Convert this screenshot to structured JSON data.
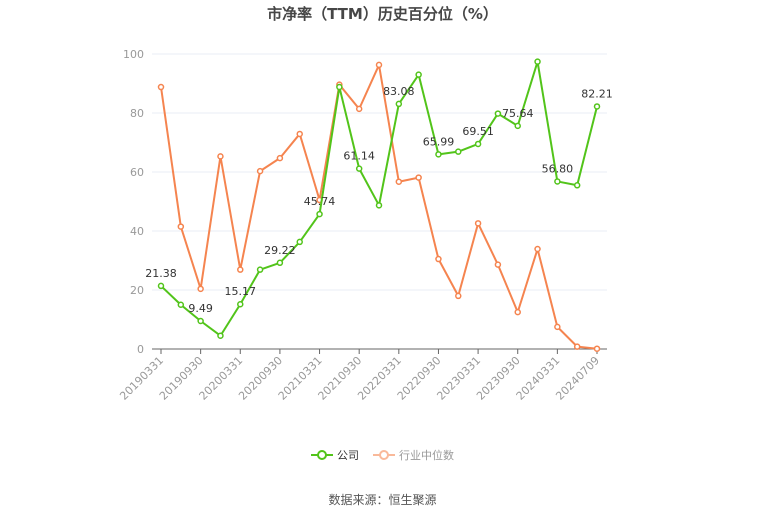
{
  "title": "市净率（TTM）历史百分位（%）",
  "legend": {
    "company": "公司",
    "industry": "行业中位数"
  },
  "source": "数据来源：恒生聚源",
  "colors": {
    "company": "#52c41a",
    "industry": "#f5844f",
    "industry_legend": "#f9b99a",
    "grid": "#e8ecf4",
    "axis": "#666666"
  },
  "chart_data": {
    "type": "line",
    "title": "市净率（TTM）历史百分位（%）",
    "xlabel": "",
    "ylabel": "",
    "ylim": [
      0,
      100
    ],
    "yticks": [
      0,
      20,
      40,
      60,
      80,
      100
    ],
    "grid": true,
    "legend_position": "bottom",
    "x": [
      "20190331",
      "20190630",
      "20190930",
      "20191231",
      "20200331",
      "20200630",
      "20200930",
      "20201231",
      "20210331",
      "20210630",
      "20210930",
      "20211231",
      "20220331",
      "20220630",
      "20220930",
      "20221231",
      "20230331",
      "20230630",
      "20230930",
      "20231231",
      "20240331",
      "20240630",
      "20240709"
    ],
    "xtick_labels": [
      "20190331",
      "20190930",
      "20200331",
      "20200930",
      "20210331",
      "20210930",
      "20220331",
      "20220930",
      "20230331",
      "20230930",
      "20240331",
      "20240709"
    ],
    "series": [
      {
        "name": "公司",
        "values": [
          21.38,
          15.0,
          9.49,
          4.5,
          15.17,
          26.9,
          29.22,
          36.3,
          45.74,
          88.8,
          61.14,
          48.7,
          83.08,
          93.0,
          65.99,
          66.9,
          69.51,
          79.8,
          75.64,
          97.4,
          56.8,
          55.5,
          82.21
        ],
        "labeled_points": {
          "0": "21.38",
          "2": "9.49",
          "4": "15.17",
          "6": "29.22",
          "8": "45.74",
          "10": "61.14",
          "12": "83.08",
          "14": "65.99",
          "16": "69.51",
          "18": "75.64",
          "20": "56.80",
          "22": "82.21"
        }
      },
      {
        "name": "行业中位数",
        "values": [
          88.8,
          41.5,
          20.4,
          65.3,
          26.9,
          60.3,
          64.7,
          72.9,
          50.5,
          89.6,
          81.4,
          96.3,
          56.7,
          58.1,
          30.5,
          18.0,
          42.6,
          28.6,
          12.5,
          33.9,
          7.5,
          0.8,
          0.1
        ]
      }
    ]
  }
}
